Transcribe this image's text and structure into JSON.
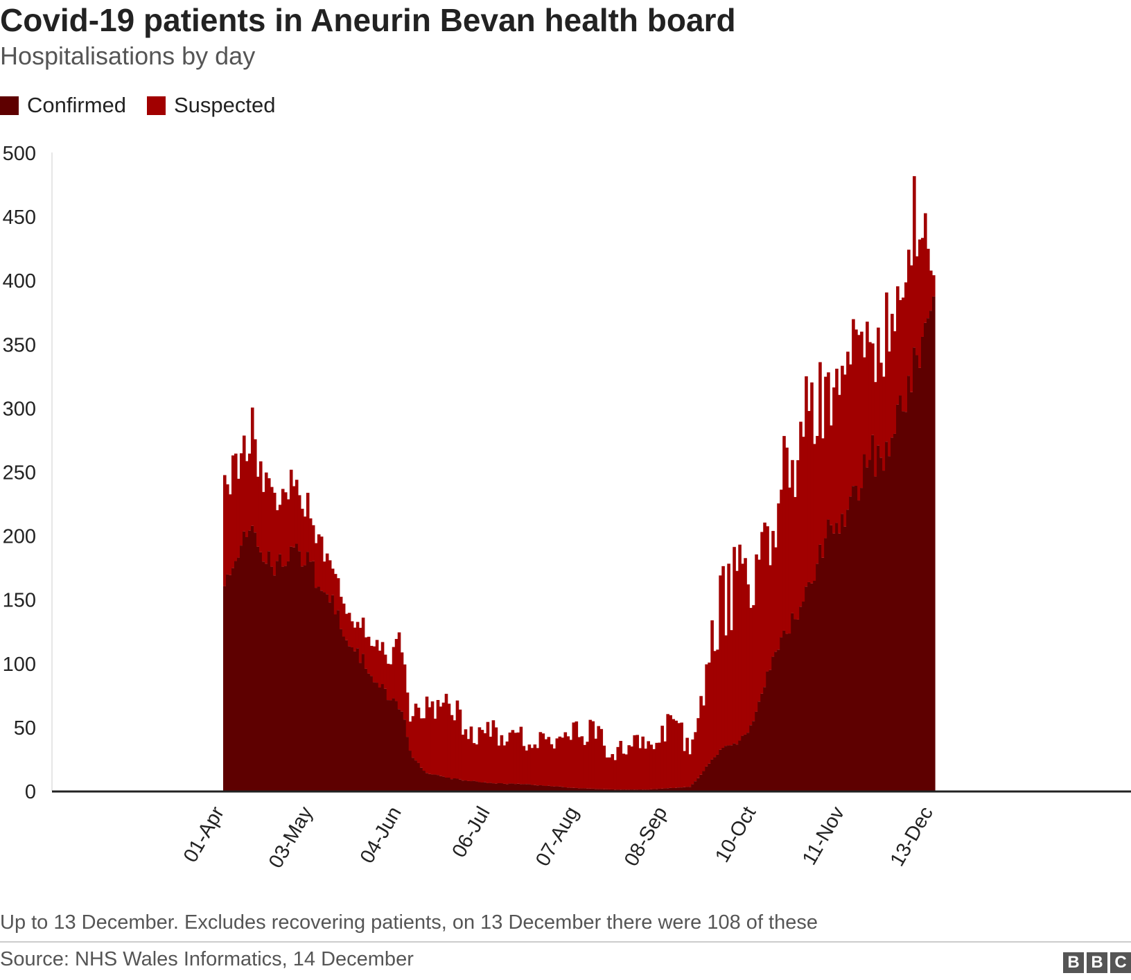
{
  "title": "Covid-19 patients in Aneurin Bevan health board",
  "subtitle": "Hospitalisations by day",
  "footnote": "Up to 13 December. Excludes recovering patients, on 13 December there were 108 of these",
  "source": "Source: NHS Wales Informatics, 14 December",
  "logo_letters": [
    "B",
    "B",
    "C"
  ],
  "colors": {
    "confirmed": "#5e0000",
    "suspected": "#a10000",
    "axis": "#222222",
    "text": "#222222",
    "muted": "#555555"
  },
  "chart_data": {
    "type": "bar",
    "stacked": true,
    "title": "Covid-19 patients in Aneurin Bevan health board",
    "subtitle": "Hospitalisations by day",
    "xlabel": "",
    "ylabel": "",
    "ylim": [
      0,
      500
    ],
    "yticks": [
      0,
      50,
      100,
      150,
      200,
      250,
      300,
      350,
      400,
      450,
      500
    ],
    "grid": false,
    "legend_position": "top-left",
    "x_tick_labels": [
      "01-Apr",
      "03-May",
      "04-Jun",
      "06-Jul",
      "07-Aug",
      "08-Sep",
      "10-Oct",
      "11-Nov",
      "13-Dec"
    ],
    "x_start": "2020-04-01",
    "x_end": "2020-12-13",
    "series": [
      {
        "name": "Confirmed",
        "color": "#5e0000",
        "anchors": [
          [
            "2020-04-01",
            165
          ],
          [
            "2020-04-05",
            185
          ],
          [
            "2020-04-10",
            200
          ],
          [
            "2020-04-15",
            190
          ],
          [
            "2020-04-20",
            170
          ],
          [
            "2020-04-25",
            195
          ],
          [
            "2020-05-01",
            180
          ],
          [
            "2020-05-05",
            165
          ],
          [
            "2020-05-10",
            150
          ],
          [
            "2020-05-15",
            120
          ],
          [
            "2020-05-20",
            105
          ],
          [
            "2020-05-25",
            90
          ],
          [
            "2020-05-30",
            75
          ],
          [
            "2020-06-04",
            65
          ],
          [
            "2020-06-07",
            30
          ],
          [
            "2020-06-12",
            15
          ],
          [
            "2020-06-20",
            10
          ],
          [
            "2020-06-28",
            8
          ],
          [
            "2020-07-06",
            6
          ],
          [
            "2020-07-20",
            5
          ],
          [
            "2020-08-01",
            3
          ],
          [
            "2020-08-07",
            2
          ],
          [
            "2020-08-20",
            1
          ],
          [
            "2020-09-01",
            1
          ],
          [
            "2020-09-08",
            2
          ],
          [
            "2020-09-16",
            3
          ],
          [
            "2020-09-20",
            12
          ],
          [
            "2020-09-25",
            28
          ],
          [
            "2020-10-01",
            36
          ],
          [
            "2020-10-06",
            42
          ],
          [
            "2020-10-10",
            60
          ],
          [
            "2020-10-15",
            100
          ],
          [
            "2020-10-20",
            120
          ],
          [
            "2020-10-25",
            140
          ],
          [
            "2020-11-01",
            180
          ],
          [
            "2020-11-06",
            210
          ],
          [
            "2020-11-11",
            215
          ],
          [
            "2020-11-16",
            240
          ],
          [
            "2020-11-20",
            265
          ],
          [
            "2020-11-25",
            255
          ],
          [
            "2020-12-01",
            300
          ],
          [
            "2020-12-06",
            330
          ],
          [
            "2020-12-10",
            370
          ],
          [
            "2020-12-13",
            405
          ]
        ]
      },
      {
        "name": "Suspected",
        "color": "#a10000",
        "anchors": [
          [
            "2020-04-01",
            95
          ],
          [
            "2020-04-05",
            70
          ],
          [
            "2020-04-10",
            85
          ],
          [
            "2020-04-15",
            60
          ],
          [
            "2020-04-20",
            55
          ],
          [
            "2020-04-25",
            50
          ],
          [
            "2020-05-01",
            40
          ],
          [
            "2020-05-05",
            35
          ],
          [
            "2020-05-10",
            25
          ],
          [
            "2020-05-15",
            22
          ],
          [
            "2020-05-20",
            25
          ],
          [
            "2020-05-25",
            30
          ],
          [
            "2020-05-30",
            30
          ],
          [
            "2020-06-04",
            55
          ],
          [
            "2020-06-07",
            30
          ],
          [
            "2020-06-12",
            45
          ],
          [
            "2020-06-20",
            60
          ],
          [
            "2020-06-28",
            40
          ],
          [
            "2020-07-06",
            40
          ],
          [
            "2020-07-20",
            35
          ],
          [
            "2020-08-01",
            30
          ],
          [
            "2020-08-07",
            50
          ],
          [
            "2020-08-20",
            30
          ],
          [
            "2020-09-01",
            35
          ],
          [
            "2020-09-08",
            50
          ],
          [
            "2020-09-16",
            35
          ],
          [
            "2020-09-20",
            60
          ],
          [
            "2020-09-25",
            110
          ],
          [
            "2020-10-01",
            120
          ],
          [
            "2020-10-06",
            120
          ],
          [
            "2020-10-10",
            130
          ],
          [
            "2020-10-15",
            105
          ],
          [
            "2020-10-20",
            125
          ],
          [
            "2020-10-25",
            125
          ],
          [
            "2020-11-01",
            130
          ],
          [
            "2020-11-06",
            110
          ],
          [
            "2020-11-11",
            110
          ],
          [
            "2020-11-16",
            110
          ],
          [
            "2020-11-20",
            95
          ],
          [
            "2020-11-25",
            105
          ],
          [
            "2020-12-01",
            70
          ],
          [
            "2020-12-06",
            105
          ],
          [
            "2020-12-10",
            70
          ],
          [
            "2020-12-13",
            20
          ]
        ]
      }
    ]
  }
}
